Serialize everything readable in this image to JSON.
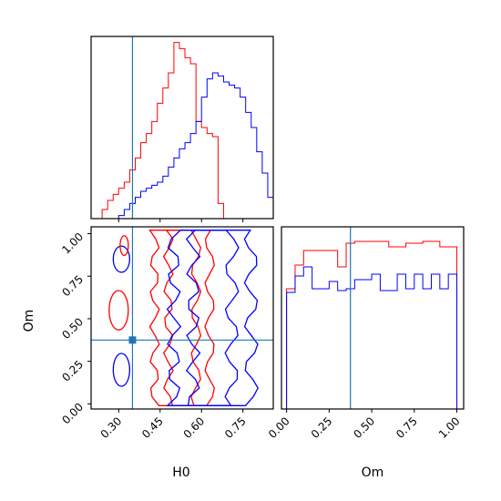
{
  "colors": {
    "series_a": "#ff0000",
    "series_b": "#0000ff",
    "truth": "#1f77b4",
    "axes": "#000000"
  },
  "chart_data": [
    {
      "type": "histogram",
      "panel": "H0 marginal",
      "xlim": [
        0.2,
        0.86
      ],
      "bin_edges": [
        0.2,
        0.22,
        0.24,
        0.26,
        0.28,
        0.3,
        0.32,
        0.34,
        0.36,
        0.38,
        0.4,
        0.42,
        0.44,
        0.46,
        0.48,
        0.5,
        0.52,
        0.54,
        0.56,
        0.58,
        0.6,
        0.62,
        0.64,
        0.66,
        0.68,
        0.7,
        0.72,
        0.74,
        0.76,
        0.78,
        0.8,
        0.82,
        0.84,
        0.86
      ],
      "series": [
        {
          "name": "",
          "color": "red",
          "values": [
            0,
            0,
            3,
            6,
            8,
            10,
            12,
            16,
            20,
            25,
            28,
            32,
            38,
            43,
            48,
            58,
            56,
            53,
            51,
            32,
            30,
            28,
            27,
            5,
            0,
            0,
            0,
            0,
            0,
            0,
            0,
            0,
            0
          ]
        },
        {
          "name": "",
          "color": "blue",
          "values": [
            0,
            0,
            0,
            0,
            0,
            1,
            3,
            5,
            7,
            9,
            10,
            11,
            12,
            14,
            17,
            20,
            23,
            25,
            28,
            32,
            40,
            46,
            48,
            47,
            45,
            44,
            43,
            40,
            35,
            30,
            22,
            15,
            7
          ]
        }
      ],
      "truth_x": 0.35
    },
    {
      "type": "contour",
      "panel": "H0 vs Om",
      "xlabel": "H0",
      "ylabel": "Om",
      "xlim": [
        0.2,
        0.86
      ],
      "ylim": [
        -0.03,
        1.04
      ],
      "xticks": [
        "0.30",
        "0.45",
        "0.60",
        "0.75"
      ],
      "yticks": [
        "0.00",
        "0.25",
        "0.50",
        "0.75",
        "1.00"
      ],
      "series": [
        {
          "name": "",
          "color": "red",
          "center_x": 0.53,
          "sigma_x": 0.05
        },
        {
          "name": "",
          "color": "blue",
          "center_x": 0.64,
          "sigma_x": 0.07
        }
      ],
      "truth_point": [
        0.35,
        0.375
      ]
    },
    {
      "type": "histogram",
      "panel": "Om marginal",
      "xlabel": "Om",
      "xlim": [
        -0.03,
        1.04
      ],
      "xticks": [
        "0.00",
        "0.25",
        "0.50",
        "0.75",
        "1.00"
      ],
      "bin_edges": [
        0.0,
        0.05,
        0.1,
        0.15,
        0.2,
        0.25,
        0.3,
        0.35,
        0.4,
        0.45,
        0.5,
        0.55,
        0.6,
        0.65,
        0.7,
        0.75,
        0.8,
        0.85,
        0.9,
        0.95,
        1.0
      ],
      "series": [
        {
          "name": "",
          "color": "red",
          "values": [
            0.66,
            0.79,
            0.87,
            0.87,
            0.87,
            0.87,
            0.78,
            0.91,
            0.92,
            0.92,
            0.92,
            0.92,
            0.89,
            0.89,
            0.91,
            0.91,
            0.92,
            0.92,
            0.89,
            0.89
          ]
        },
        {
          "name": "",
          "color": "blue",
          "values": [
            0.64,
            0.73,
            0.78,
            0.66,
            0.66,
            0.7,
            0.65,
            0.66,
            0.71,
            0.71,
            0.74,
            0.65,
            0.65,
            0.74,
            0.66,
            0.74,
            0.66,
            0.74,
            0.66,
            0.74
          ]
        }
      ],
      "ylim": [
        0,
        1.0
      ],
      "truth_x": 0.375
    }
  ]
}
